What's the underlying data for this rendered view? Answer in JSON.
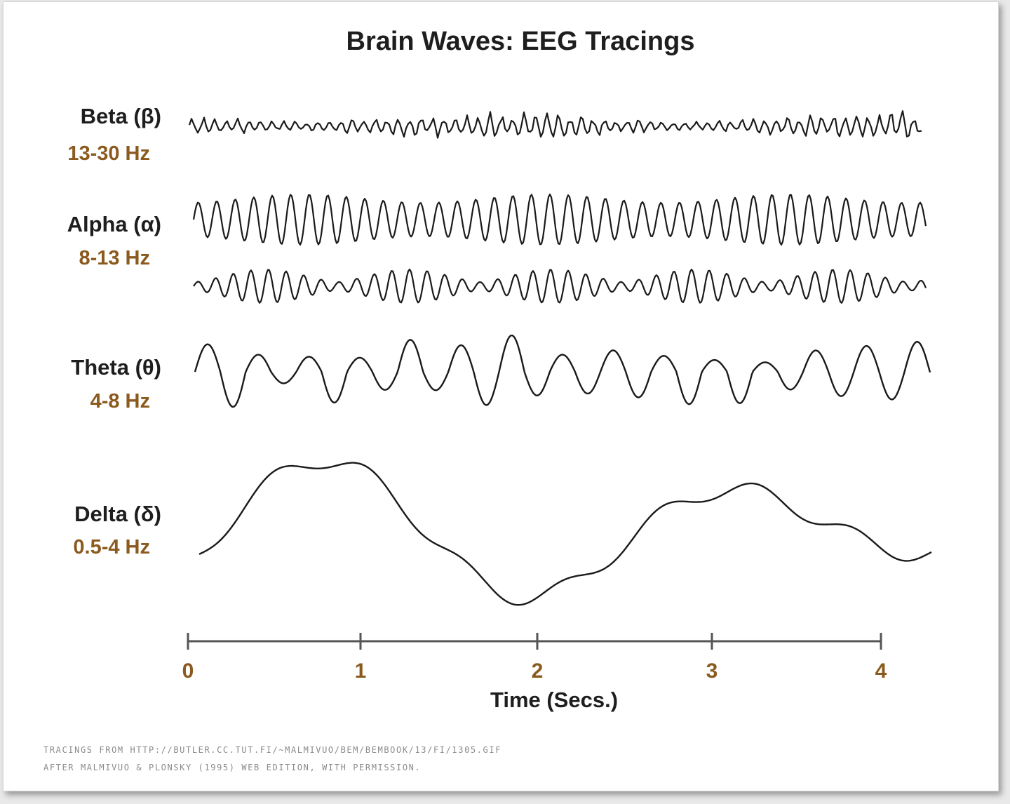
{
  "title": "Brain Waves: EEG Tracings",
  "colors": {
    "text": "#1e1e1e",
    "range": "#8b5a1e",
    "trace": "#1a1a1a",
    "axis": "#555555"
  },
  "bands": [
    {
      "name": "Beta (β)",
      "range": "13-30 Hz"
    },
    {
      "name": "Alpha (α)",
      "range": "8-13 Hz"
    },
    {
      "name": "Theta (θ)",
      "range": "4-8 Hz"
    },
    {
      "name": "Delta (δ)",
      "range": "0.5-4 Hz"
    }
  ],
  "axis": {
    "title": "Time (Secs.)",
    "ticks": [
      "0",
      "1",
      "2",
      "3",
      "4"
    ]
  },
  "credits": [
    "Tracings from http://butler.cc.tut.fi/~malmivuo/bem/bembook/13/fi/1305.gif",
    "After Malmivuo & Plonsky (1995) Web Edition, with permission."
  ]
}
